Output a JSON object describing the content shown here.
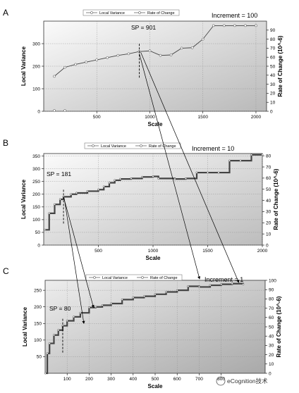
{
  "chart_data": [
    {
      "type": "line",
      "panel": "A",
      "increment_label": "Increment = 100",
      "xlabel": "Scale",
      "ylabel_left": "Local Variance",
      "ylabel_right": "Rate of Change (10^-6)",
      "xlim": [
        0,
        2100
      ],
      "ylim_left": [
        0,
        400
      ],
      "ylim_right": [
        0,
        100
      ],
      "xticks": [
        500,
        1000,
        1500,
        2000
      ],
      "yticks_left": [
        0,
        100,
        200,
        300
      ],
      "yticks_right": [
        0,
        10,
        20,
        30,
        40,
        50,
        60,
        70,
        80,
        90
      ],
      "grid": true,
      "legend": {
        "placement": "top",
        "entries": [
          "Local Variance",
          "Rate of Change"
        ]
      },
      "series": [
        {
          "name": "Local Variance",
          "x": [
            100,
            200,
            300,
            400,
            500,
            600,
            700,
            800,
            900,
            1000,
            1100,
            1200,
            1300,
            1400,
            1500,
            1600,
            1700,
            1800,
            1900,
            2000
          ],
          "y": [
            155,
            195,
            208,
            218,
            228,
            238,
            248,
            255,
            265,
            268,
            248,
            250,
            280,
            282,
            320,
            380,
            380,
            380,
            380,
            380
          ]
        }
      ],
      "annotation": {
        "text": "SP = 901",
        "x": 901
      }
    },
    {
      "type": "line",
      "panel": "B",
      "increment_label": "Increment = 10",
      "xlabel": "Scale",
      "ylabel_left": "Local Variance",
      "ylabel_right": "Rate of Change (10^-6)",
      "xlim": [
        0,
        2000
      ],
      "ylim_left": [
        0,
        360
      ],
      "ylim_right": [
        0,
        82
      ],
      "xticks": [
        500,
        1000,
        1500,
        2000
      ],
      "yticks_left": [
        0,
        50,
        100,
        150,
        200,
        250,
        300,
        350
      ],
      "yticks_right": [
        0,
        10,
        20,
        30,
        40,
        50,
        60,
        70,
        80
      ],
      "grid": true,
      "legend": {
        "placement": "top",
        "entries": [
          "Local Variance",
          "Rate of Change"
        ]
      },
      "series": [
        {
          "name": "Local Variance",
          "x": [
            10,
            50,
            100,
            150,
            181,
            250,
            300,
            400,
            500,
            550,
            600,
            650,
            700,
            800,
            900,
            1000,
            1050,
            1200,
            1300,
            1400,
            1500,
            1600,
            1700,
            1800,
            1900,
            2000
          ],
          "y": [
            60,
            125,
            160,
            180,
            190,
            200,
            205,
            212,
            218,
            230,
            245,
            255,
            260,
            262,
            268,
            270,
            262,
            260,
            262,
            285,
            285,
            285,
            332,
            332,
            355,
            355
          ]
        }
      ],
      "annotation": {
        "text": "SP = 181",
        "x": 181
      }
    },
    {
      "type": "line",
      "panel": "C",
      "increment_label": "Increment = 1",
      "xlabel": "Scale",
      "ylabel_left": "Local Variance",
      "ylabel_right": "Rate of Change (10^-6)",
      "xlim": [
        0,
        1000
      ],
      "ylim_left": [
        0,
        280
      ],
      "ylim_right": [
        0,
        100
      ],
      "xticks": [
        100,
        200,
        300,
        400,
        500,
        600,
        700,
        800
      ],
      "yticks_left": [
        50,
        100,
        150,
        200,
        250
      ],
      "yticks_right": [
        0,
        10,
        20,
        30,
        40,
        50,
        60,
        70,
        80,
        90,
        100
      ],
      "grid": true,
      "legend": {
        "placement": "top",
        "entries": [
          "Local Variance",
          "Rate of Change"
        ]
      },
      "series": [
        {
          "name": "Local Variance",
          "x": [
            1,
            10,
            20,
            40,
            60,
            80,
            100,
            130,
            160,
            200,
            230,
            260,
            300,
            350,
            400,
            450,
            500,
            550,
            600,
            650,
            700,
            750,
            800,
            850,
            900
          ],
          "y": [
            0,
            60,
            90,
            115,
            130,
            143,
            158,
            170,
            182,
            198,
            200,
            205,
            210,
            222,
            228,
            232,
            238,
            245,
            250,
            262,
            260,
            265,
            268,
            270,
            268
          ]
        }
      ],
      "annotation": {
        "text": "SP = 80",
        "x": 80
      }
    }
  ],
  "watermark": "eCognition技术"
}
